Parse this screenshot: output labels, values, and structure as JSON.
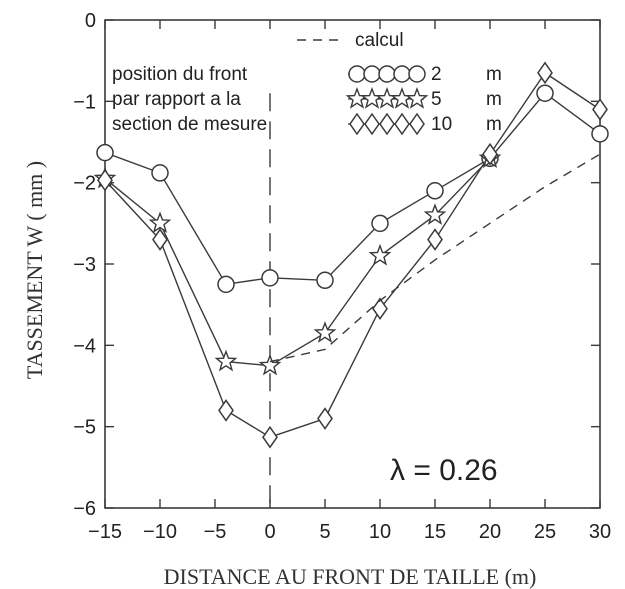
{
  "chart_data": {
    "type": "line",
    "xlabel": "DISTANCE AU FRONT DE TAILLE (m)",
    "ylabel": "TASSEMENT W ( mm )",
    "xlim": [
      -15,
      30
    ],
    "ylim": [
      -6,
      0
    ],
    "xticks": [
      -15,
      -10,
      -5,
      0,
      5,
      10,
      15,
      20,
      25,
      30
    ],
    "yticks": [
      0,
      -1,
      -2,
      -3,
      -4,
      -5,
      -6
    ],
    "xtick_labels": [
      "−15",
      "−10",
      "−5",
      "0",
      "5",
      "10",
      "15",
      "20",
      "25",
      "30"
    ],
    "ytick_labels": [
      "0",
      "−1",
      "−2",
      "−3",
      "−4",
      "−5",
      "−6"
    ],
    "grid": false,
    "legend_placement": "top-right",
    "legend_title_lines": [
      "position du front",
      "par rapport a la",
      "section de mesure"
    ],
    "annotation": "λ  =  0.26",
    "front_line_x": 0,
    "series": [
      {
        "name": "2 m",
        "legend_value": "2",
        "legend_unit": "m",
        "marker": "circle",
        "x": [
          -15,
          -10,
          -4,
          0,
          5,
          10,
          15,
          20,
          25,
          30
        ],
        "y": [
          -1.63,
          -1.88,
          -3.25,
          -3.17,
          -3.2,
          -2.5,
          -2.1,
          -1.7,
          -0.9,
          -1.4
        ]
      },
      {
        "name": "5 m",
        "legend_value": "5",
        "legend_unit": "m",
        "marker": "star",
        "x": [
          -15,
          -10,
          -4,
          0,
          5,
          10,
          15,
          20
        ],
        "y": [
          -1.95,
          -2.5,
          -4.2,
          -4.25,
          -3.85,
          -2.9,
          -2.4,
          -1.7
        ]
      },
      {
        "name": "10 m",
        "legend_value": "10",
        "legend_unit": "m",
        "marker": "diamond",
        "x": [
          -15,
          -10,
          -4,
          0,
          5,
          10,
          15,
          20,
          25,
          30
        ],
        "y": [
          -1.97,
          -2.7,
          -4.8,
          -5.13,
          -4.9,
          -3.55,
          -2.7,
          -1.65,
          -0.65,
          -1.1
        ]
      },
      {
        "name": "calcul",
        "style": "dashed",
        "marker": "none",
        "x": [
          0,
          5,
          10,
          15,
          20,
          25,
          30
        ],
        "y": [
          -4.2,
          -4.05,
          -3.45,
          -2.95,
          -2.5,
          -2.05,
          -1.65
        ]
      }
    ]
  }
}
